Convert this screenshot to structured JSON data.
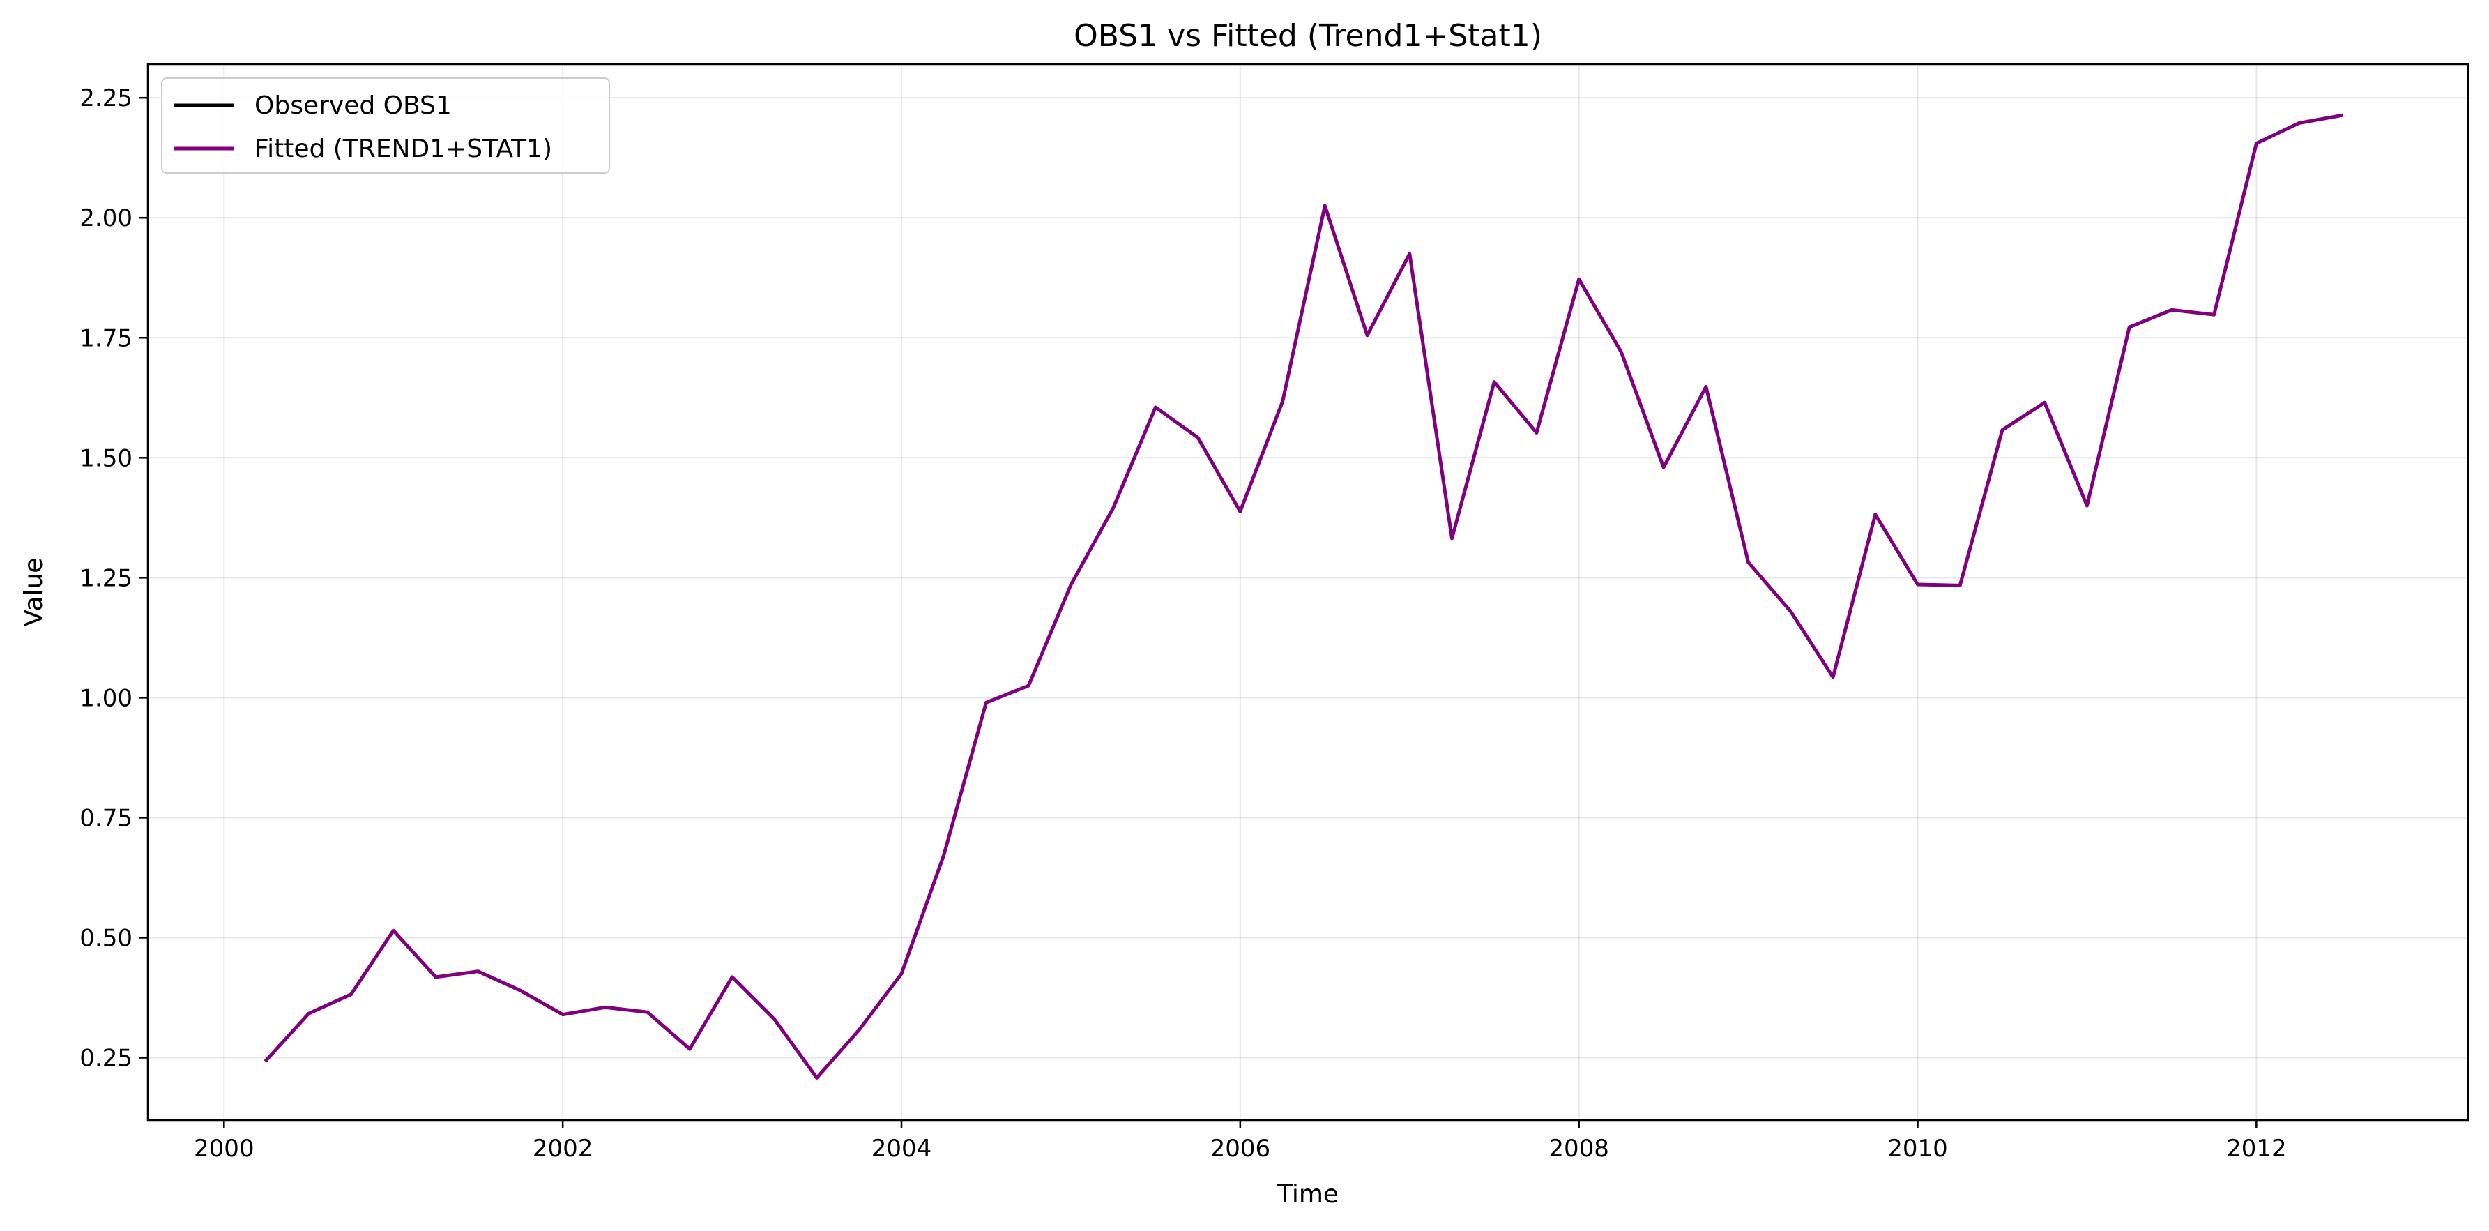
{
  "chart_data": {
    "type": "line",
    "title": "OBS1 vs Fitted (Trend1+Stat1)",
    "xlabel": "Time",
    "ylabel": "Value",
    "xlim": [
      1999.55,
      2013.25
    ],
    "ylim": [
      0.12,
      2.32
    ],
    "xticks": [
      2000,
      2002,
      2004,
      2006,
      2008,
      2010,
      2012
    ],
    "xtick_labels": [
      "2000",
      "2002",
      "2004",
      "2006",
      "2008",
      "2010",
      "2012"
    ],
    "yticks": [
      0.25,
      0.5,
      0.75,
      1.0,
      1.25,
      1.5,
      1.75,
      2.0,
      2.25
    ],
    "ytick_labels": [
      "0.25",
      "0.50",
      "0.75",
      "1.00",
      "1.25",
      "1.50",
      "1.75",
      "2.00",
      "2.25"
    ],
    "grid": true,
    "legend_position": "top-left",
    "series": [
      {
        "name": "Observed OBS1",
        "color": "#000000",
        "x": [],
        "values": []
      },
      {
        "name": "Fitted (TREND1+STAT1)",
        "color": "#800080",
        "x": [
          2000.25,
          2000.5,
          2000.75,
          2001.0,
          2001.25,
          2001.5,
          2001.75,
          2002.0,
          2002.25,
          2002.5,
          2002.75,
          2003.0,
          2003.25,
          2003.5,
          2003.75,
          2004.0,
          2004.25,
          2004.5,
          2004.75,
          2005.0,
          2005.25,
          2005.5,
          2005.75,
          2006.0,
          2006.25,
          2006.5,
          2006.75,
          2007.0,
          2007.25,
          2007.5,
          2007.75,
          2008.0,
          2008.25,
          2008.5,
          2008.75,
          2009.0,
          2009.25,
          2009.5,
          2009.75,
          2010.0,
          2010.25,
          2010.5,
          2010.75,
          2011.0,
          2011.25,
          2011.5,
          2011.75,
          2012.0,
          2012.25,
          2012.5
        ],
        "values": [
          0.245,
          0.342,
          0.382,
          0.515,
          0.418,
          0.43,
          0.39,
          0.34,
          0.355,
          0.345,
          0.268,
          0.418,
          0.33,
          0.208,
          0.308,
          0.425,
          0.672,
          0.99,
          1.025,
          1.235,
          1.395,
          1.605,
          1.542,
          1.388,
          1.617,
          2.025,
          1.755,
          1.925,
          1.332,
          1.658,
          1.552,
          1.872,
          1.72,
          1.48,
          1.648,
          1.282,
          1.18,
          1.043,
          1.382,
          1.236,
          1.234,
          1.558,
          1.615,
          1.4,
          1.772,
          1.808,
          1.798,
          2.155,
          2.197,
          2.213
        ]
      }
    ]
  }
}
